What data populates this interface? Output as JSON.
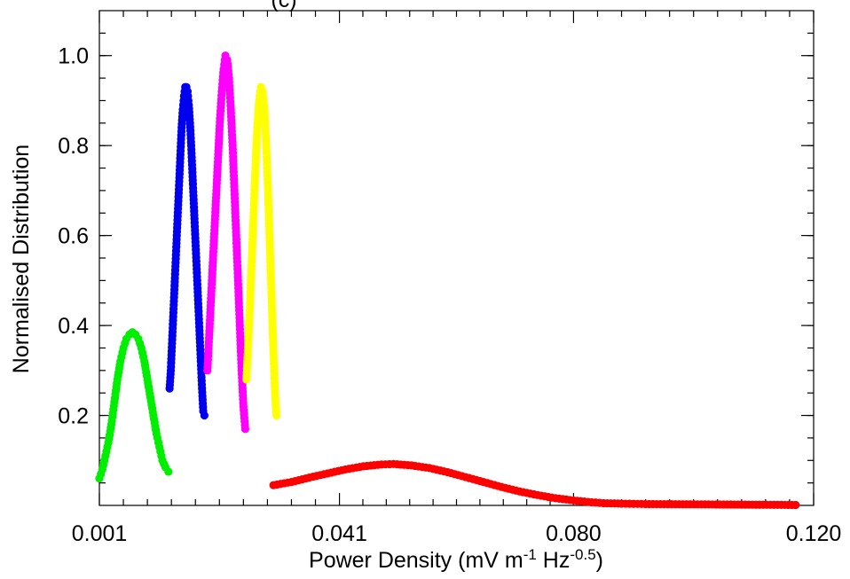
{
  "chart_data": {
    "type": "scatter",
    "title": "(c)",
    "xlabel": "Power Density (mV m",
    "xlabel_sup1": "-1",
    "xlabel_mid": " Hz",
    "xlabel_sup2": "-0.5",
    "xlabel_end": ")",
    "ylabel": "Normalised Distribution",
    "xlim": [
      0.001,
      0.12
    ],
    "ylim": [
      0.0,
      1.1
    ],
    "x_ticks": [
      {
        "value": 0.001,
        "label": "0.001"
      },
      {
        "value": 0.041,
        "label": "0.041"
      },
      {
        "value": 0.08,
        "label": "0.080"
      },
      {
        "value": 0.12,
        "label": "0.120"
      }
    ],
    "y_ticks": [
      {
        "value": 0.2,
        "label": "0.2"
      },
      {
        "value": 0.4,
        "label": "0.4"
      },
      {
        "value": 0.6,
        "label": "0.6"
      },
      {
        "value": 0.8,
        "label": "0.8"
      },
      {
        "value": 1.0,
        "label": "1.0"
      }
    ],
    "grid": false,
    "series": [
      {
        "color": "#00ee00",
        "points": [
          [
            0.001,
            0.06
          ],
          [
            0.0015,
            0.08
          ],
          [
            0.002,
            0.11
          ],
          [
            0.0025,
            0.14
          ],
          [
            0.003,
            0.18
          ],
          [
            0.0035,
            0.23
          ],
          [
            0.004,
            0.28
          ],
          [
            0.0045,
            0.32
          ],
          [
            0.005,
            0.35
          ],
          [
            0.0055,
            0.37
          ],
          [
            0.006,
            0.38
          ],
          [
            0.0065,
            0.385
          ],
          [
            0.007,
            0.38
          ],
          [
            0.0075,
            0.37
          ],
          [
            0.008,
            0.35
          ],
          [
            0.0085,
            0.32
          ],
          [
            0.009,
            0.28
          ],
          [
            0.0095,
            0.24
          ],
          [
            0.01,
            0.2
          ],
          [
            0.0105,
            0.16
          ],
          [
            0.011,
            0.13
          ],
          [
            0.0115,
            0.1
          ],
          [
            0.012,
            0.085
          ],
          [
            0.0125,
            0.075
          ]
        ]
      },
      {
        "color": "#0000ee",
        "points": [
          [
            0.0127,
            0.26
          ],
          [
            0.0129,
            0.3
          ],
          [
            0.0131,
            0.36
          ],
          [
            0.0133,
            0.42
          ],
          [
            0.0135,
            0.48
          ],
          [
            0.0137,
            0.54
          ],
          [
            0.0139,
            0.6
          ],
          [
            0.0141,
            0.66
          ],
          [
            0.0143,
            0.72
          ],
          [
            0.0145,
            0.78
          ],
          [
            0.0147,
            0.84
          ],
          [
            0.0149,
            0.88
          ],
          [
            0.0151,
            0.91
          ],
          [
            0.0153,
            0.93
          ],
          [
            0.0155,
            0.93
          ],
          [
            0.0157,
            0.92
          ],
          [
            0.0159,
            0.89
          ],
          [
            0.0161,
            0.85
          ],
          [
            0.0163,
            0.8
          ],
          [
            0.0165,
            0.74
          ],
          [
            0.0167,
            0.68
          ],
          [
            0.0169,
            0.62
          ],
          [
            0.0171,
            0.56
          ],
          [
            0.0173,
            0.5
          ],
          [
            0.0175,
            0.44
          ],
          [
            0.0177,
            0.38
          ],
          [
            0.0179,
            0.32
          ],
          [
            0.0181,
            0.26
          ],
          [
            0.0183,
            0.21
          ],
          [
            0.0185,
            0.2
          ]
        ]
      },
      {
        "color": "#ff00ff",
        "points": [
          [
            0.019,
            0.3
          ],
          [
            0.0193,
            0.38
          ],
          [
            0.0196,
            0.46
          ],
          [
            0.0199,
            0.54
          ],
          [
            0.0202,
            0.62
          ],
          [
            0.0205,
            0.7
          ],
          [
            0.0208,
            0.78
          ],
          [
            0.0211,
            0.86
          ],
          [
            0.0214,
            0.92
          ],
          [
            0.0217,
            0.97
          ],
          [
            0.022,
            1.0
          ],
          [
            0.0223,
            0.99
          ],
          [
            0.0226,
            0.95
          ],
          [
            0.0229,
            0.88
          ],
          [
            0.0232,
            0.8
          ],
          [
            0.0235,
            0.7
          ],
          [
            0.0238,
            0.6
          ],
          [
            0.0241,
            0.5
          ],
          [
            0.0244,
            0.4
          ],
          [
            0.0247,
            0.3
          ],
          [
            0.025,
            0.22
          ],
          [
            0.0253,
            0.17
          ]
        ]
      },
      {
        "color": "#ffff00",
        "points": [
          [
            0.0255,
            0.28
          ],
          [
            0.0258,
            0.36
          ],
          [
            0.0261,
            0.45
          ],
          [
            0.0264,
            0.55
          ],
          [
            0.0267,
            0.65
          ],
          [
            0.027,
            0.75
          ],
          [
            0.0273,
            0.84
          ],
          [
            0.0276,
            0.9
          ],
          [
            0.0279,
            0.93
          ],
          [
            0.0282,
            0.92
          ],
          [
            0.0285,
            0.88
          ],
          [
            0.0288,
            0.8
          ],
          [
            0.0291,
            0.7
          ],
          [
            0.0294,
            0.58
          ],
          [
            0.0297,
            0.46
          ],
          [
            0.03,
            0.34
          ],
          [
            0.0303,
            0.24
          ],
          [
            0.0305,
            0.2
          ]
        ]
      },
      {
        "color": "#ff0000",
        "points": [
          [
            0.03,
            0.045
          ],
          [
            0.033,
            0.052
          ],
          [
            0.036,
            0.062
          ],
          [
            0.039,
            0.071
          ],
          [
            0.042,
            0.08
          ],
          [
            0.045,
            0.087
          ],
          [
            0.048,
            0.091
          ],
          [
            0.05,
            0.092
          ],
          [
            0.053,
            0.089
          ],
          [
            0.056,
            0.083
          ],
          [
            0.059,
            0.074
          ],
          [
            0.062,
            0.063
          ],
          [
            0.065,
            0.052
          ],
          [
            0.068,
            0.041
          ],
          [
            0.071,
            0.031
          ],
          [
            0.074,
            0.023
          ],
          [
            0.077,
            0.016
          ],
          [
            0.08,
            0.011
          ],
          [
            0.083,
            0.007
          ],
          [
            0.085,
            0.005
          ],
          [
            0.088,
            0.004
          ],
          [
            0.092,
            0.003
          ],
          [
            0.105,
            0.002
          ],
          [
            0.117,
            0.001
          ]
        ]
      }
    ]
  }
}
